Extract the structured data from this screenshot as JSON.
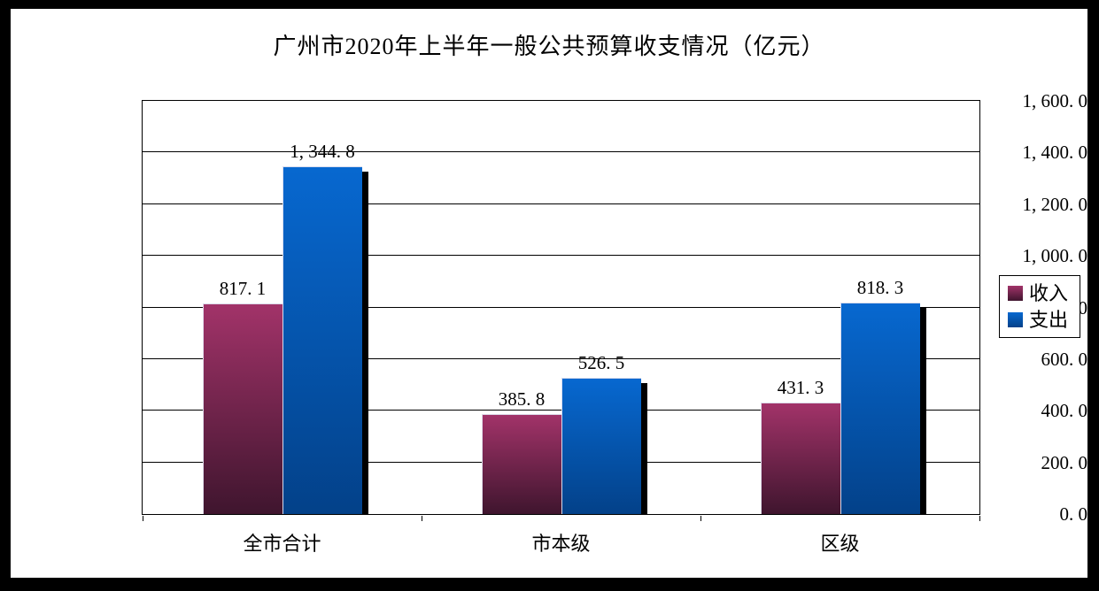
{
  "frame_color": "#000000",
  "background_color": "#ffffff",
  "title": "广州市2020年上半年一般公共预算收支情况（亿元）",
  "legend": {
    "items": [
      {
        "label": "收入",
        "color_top": "#a23369",
        "color_bottom": "#3f152e"
      },
      {
        "label": "支出",
        "color_top": "#0768d0",
        "color_bottom": "#034189"
      }
    ]
  },
  "chart_data": {
    "type": "bar",
    "title": "广州市2020年上半年一般公共预算收支情况（亿元）",
    "categories": [
      "全市合计",
      "市本级",
      "区级"
    ],
    "series": [
      {
        "name": "收入",
        "values": [
          817.1,
          385.8,
          431.3
        ],
        "value_labels": [
          "817. 1",
          "385. 8",
          "431. 3"
        ],
        "color_top": "#a23369",
        "color_bottom": "#3f152e"
      },
      {
        "name": "支出",
        "values": [
          1344.8,
          526.5,
          818.3
        ],
        "value_labels": [
          "1, 344. 8",
          "526. 5",
          "818. 3"
        ],
        "color_top": "#0768d0",
        "color_bottom": "#034189"
      }
    ],
    "xlabel": "",
    "ylabel": "",
    "ylim": [
      0,
      1600
    ],
    "ytick_step": 200,
    "ytick_labels": [
      "0. 0",
      "200. 0",
      "400. 0",
      "600. 0",
      "800. 0",
      "1, 000. 0",
      "1, 200. 0",
      "1, 400. 0",
      "1, 600. 0"
    ],
    "grid": true,
    "legend_position": "right",
    "shadow_color": "#000000"
  }
}
